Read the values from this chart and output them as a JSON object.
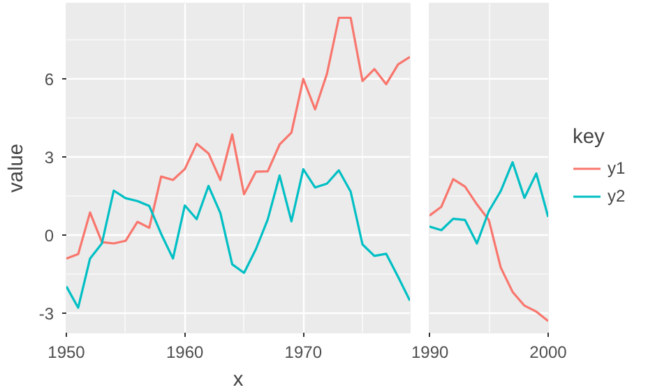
{
  "chart_data": [
    {
      "type": "line",
      "xlabel": "x",
      "ylabel": "value",
      "x": [
        1950,
        1951,
        1952,
        1953,
        1954,
        1955,
        1956,
        1957,
        1958,
        1959,
        1960,
        1961,
        1962,
        1963,
        1964,
        1965,
        1966,
        1967,
        1968,
        1969,
        1970,
        1971,
        1972,
        1973,
        1974,
        1975,
        1976,
        1977,
        1978,
        1979
      ],
      "series": [
        {
          "color": "#f8766d",
          "values": [
            -0.9,
            -0.73,
            0.87,
            -0.27,
            -0.32,
            -0.22,
            0.51,
            0.28,
            2.25,
            2.12,
            2.54,
            3.51,
            3.14,
            2.12,
            3.87,
            1.57,
            2.44,
            2.45,
            3.48,
            3.94,
            6.0,
            4.83,
            6.2,
            8.35,
            8.35,
            5.92,
            6.38,
            5.8,
            6.56,
            6.85
          ]
        },
        {
          "color": "#00bfc4",
          "values": [
            -1.97,
            -2.79,
            -0.9,
            -0.32,
            1.71,
            1.42,
            1.31,
            1.12,
            0.05,
            -0.9,
            1.14,
            0.61,
            1.89,
            0.85,
            -1.12,
            -1.45,
            -0.54,
            0.6,
            2.29,
            0.53,
            2.53,
            1.83,
            1.98,
            2.49,
            1.67,
            -0.36,
            -0.8,
            -0.72,
            -1.6,
            -2.52
          ]
        }
      ],
      "xlim": [
        1950,
        1979
      ],
      "xticks": [
        1950,
        1960,
        1970
      ],
      "ylim": [
        -3.75,
        8.9
      ],
      "yticks": [
        -3,
        0,
        3,
        6
      ],
      "grid": true
    },
    {
      "type": "line",
      "legend_title": "key",
      "x": [
        1990,
        1991,
        1992,
        1993,
        1994,
        1995,
        1996,
        1997,
        1998,
        1999,
        2000
      ],
      "series": [
        {
          "name": "y1",
          "color": "#f8766d",
          "values": [
            0.75,
            1.09,
            2.15,
            1.86,
            1.18,
            0.58,
            -1.24,
            -2.18,
            -2.71,
            -2.94,
            -3.3
          ]
        },
        {
          "name": "y2",
          "color": "#00bfc4",
          "values": [
            0.33,
            0.19,
            0.63,
            0.58,
            -0.32,
            0.92,
            1.69,
            2.8,
            1.43,
            2.37,
            0.7
          ]
        }
      ],
      "xlim": [
        1990,
        2000
      ],
      "xticks": [
        1990,
        2000
      ],
      "ylim": [
        -3.75,
        8.9
      ],
      "yticks": [
        -3,
        0,
        3,
        6
      ],
      "grid": true,
      "tick_labels": "x",
      "legend": "right"
    }
  ]
}
